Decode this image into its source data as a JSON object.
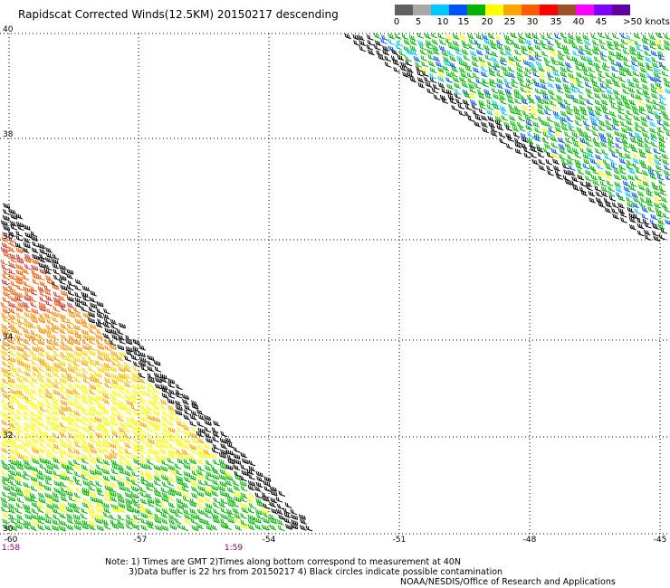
{
  "title": "Rapidscat Corrected Winds(12.5KM) 20150217 descending",
  "color_scale": {
    "labels": [
      "0",
      "5",
      "10",
      "15",
      "20",
      "25",
      "30",
      "35",
      "40",
      "45",
      ">50 knots"
    ],
    "colors": [
      "#606060",
      "#a8a8a8",
      "#00c8ff",
      "#0050ff",
      "#00b400",
      "#ffff00",
      "#ffa500",
      "#ff5a00",
      "#ff0000",
      "#a05028",
      "#ff00ff",
      "#8000ff",
      "#6000a0"
    ]
  },
  "lat_labels": [
    "40",
    "38",
    "36",
    "34",
    "32",
    "30"
  ],
  "lon_labels": [
    "-60",
    "-57",
    "-54",
    "-51",
    "-48",
    "-45"
  ],
  "time_labels": [
    "1:58",
    "1:59"
  ],
  "notes": [
    "Note: 1) Times are GMT 2)Times along bottom correspond to measurement at 40N",
    "3)Data buffer is 22 hrs from 20150217 4) Black circles indicate possible contamination",
    "NOAA/NESDIS/Office of Research and Applications"
  ]
}
